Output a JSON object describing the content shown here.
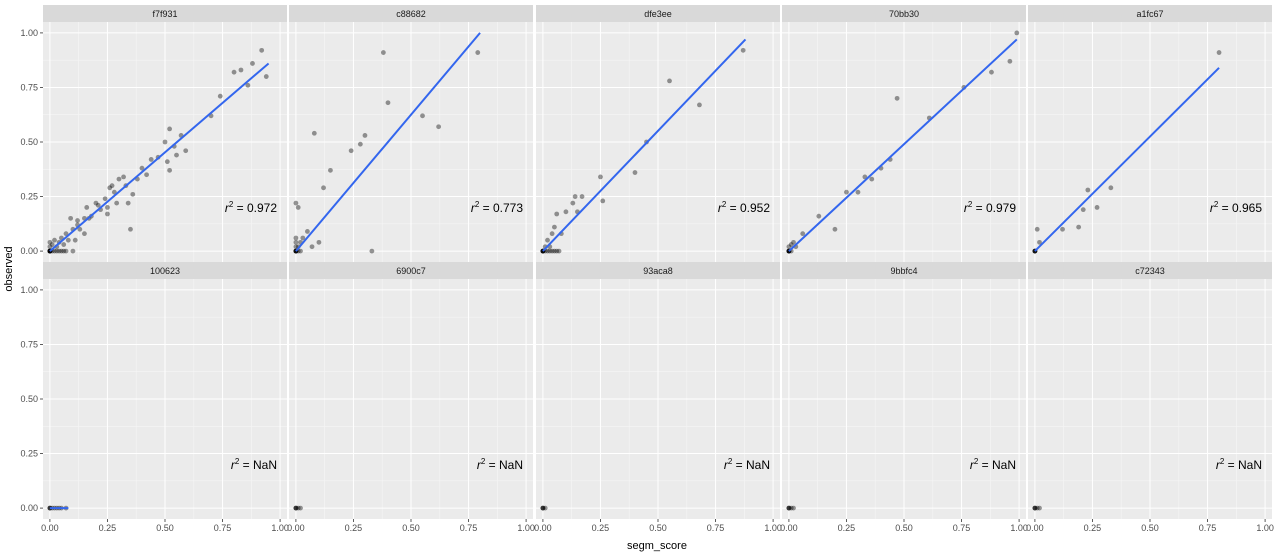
{
  "chart_data": {
    "type": "scatter",
    "layout": "facet-grid",
    "ncol": 5,
    "nrow": 2,
    "xlabel": "segm_score",
    "ylabel": "observed",
    "xlim": [
      -0.03,
      1.03
    ],
    "ylim": [
      -0.05,
      1.05
    ],
    "xticks": [
      0.0,
      0.25,
      0.5,
      0.75,
      1.0
    ],
    "yticks": [
      0.0,
      0.25,
      0.5,
      0.75,
      1.0
    ],
    "xtick_labels": [
      "0.00",
      "0.25",
      "0.50",
      "0.75",
      "1.00"
    ],
    "ytick_labels": [
      "0.00",
      "0.25",
      "0.50",
      "0.75",
      "1.00"
    ],
    "grid": true,
    "legend": "none",
    "point_color": "#000000",
    "point_alpha": 0.4,
    "line_color": "#3366ee",
    "panel_background": "#ebebeb",
    "strip_background": "#d9d9d9",
    "annotation_prefix": "r",
    "annotation_sup": "2",
    "panels": [
      {
        "id": "f7f931",
        "annotation": " = 0.972",
        "fit": {
          "x": [
            0.0,
            0.95
          ],
          "y": [
            0.0,
            0.86
          ]
        },
        "points": [
          [
            0,
            0
          ],
          [
            0,
            0
          ],
          [
            0,
            0
          ],
          [
            0,
            0
          ],
          [
            0,
            0
          ],
          [
            0,
            0
          ],
          [
            0,
            0
          ],
          [
            0,
            0
          ],
          [
            0,
            0.02
          ],
          [
            0,
            0.04
          ],
          [
            0.01,
            0.0
          ],
          [
            0.01,
            0.03
          ],
          [
            0.02,
            0.0
          ],
          [
            0.02,
            0.05
          ],
          [
            0.03,
            0.0
          ],
          [
            0.03,
            0.02
          ],
          [
            0.04,
            0.0
          ],
          [
            0.04,
            0.04
          ],
          [
            0.05,
            0.0
          ],
          [
            0.05,
            0.06
          ],
          [
            0.06,
            0.0
          ],
          [
            0.06,
            0.03
          ],
          [
            0.07,
            0.0
          ],
          [
            0.07,
            0.08
          ],
          [
            0.08,
            0.05
          ],
          [
            0.09,
            0.15
          ],
          [
            0.1,
            0.0
          ],
          [
            0.1,
            0.1
          ],
          [
            0.11,
            0.05
          ],
          [
            0.12,
            0.12
          ],
          [
            0.12,
            0.14
          ],
          [
            0.13,
            0.1
          ],
          [
            0.15,
            0.08
          ],
          [
            0.15,
            0.15
          ],
          [
            0.16,
            0.2
          ],
          [
            0.17,
            0.15
          ],
          [
            0.18,
            0.16
          ],
          [
            0.2,
            0.22
          ],
          [
            0.21,
            0.21
          ],
          [
            0.22,
            0.19
          ],
          [
            0.24,
            0.24
          ],
          [
            0.25,
            0.2
          ],
          [
            0.25,
            0.17
          ],
          [
            0.26,
            0.29
          ],
          [
            0.27,
            0.3
          ],
          [
            0.28,
            0.27
          ],
          [
            0.29,
            0.22
          ],
          [
            0.3,
            0.33
          ],
          [
            0.32,
            0.34
          ],
          [
            0.33,
            0.3
          ],
          [
            0.34,
            0.22
          ],
          [
            0.35,
            0.1
          ],
          [
            0.36,
            0.26
          ],
          [
            0.38,
            0.33
          ],
          [
            0.4,
            0.38
          ],
          [
            0.42,
            0.35
          ],
          [
            0.44,
            0.42
          ],
          [
            0.47,
            0.43
          ],
          [
            0.5,
            0.5
          ],
          [
            0.51,
            0.41
          ],
          [
            0.52,
            0.37
          ],
          [
            0.52,
            0.56
          ],
          [
            0.54,
            0.48
          ],
          [
            0.55,
            0.44
          ],
          [
            0.57,
            0.53
          ],
          [
            0.59,
            0.46
          ],
          [
            0.7,
            0.62
          ],
          [
            0.74,
            0.71
          ],
          [
            0.8,
            0.82
          ],
          [
            0.83,
            0.83
          ],
          [
            0.86,
            0.76
          ],
          [
            0.88,
            0.86
          ],
          [
            0.92,
            0.92
          ],
          [
            0.94,
            0.8
          ]
        ]
      },
      {
        "id": "c88682",
        "annotation": " = 0.773",
        "fit": {
          "x": [
            0.0,
            0.8
          ],
          "y": [
            0.0,
            1.0
          ]
        },
        "points": [
          [
            0,
            0
          ],
          [
            0,
            0
          ],
          [
            0,
            0
          ],
          [
            0,
            0
          ],
          [
            0,
            0
          ],
          [
            0,
            0
          ],
          [
            0,
            0.02
          ],
          [
            0,
            0.04
          ],
          [
            0,
            0.06
          ],
          [
            0.01,
            0.0
          ],
          [
            0.01,
            0.02
          ],
          [
            0.02,
            0.0
          ],
          [
            0.02,
            0.04
          ],
          [
            0.03,
            0.06
          ],
          [
            0.05,
            0.09
          ],
          [
            0.07,
            0.02
          ],
          [
            0.08,
            0.54
          ],
          [
            0.1,
            0.04
          ],
          [
            0.12,
            0.29
          ],
          [
            0.15,
            0.37
          ],
          [
            0.24,
            0.46
          ],
          [
            0.28,
            0.49
          ],
          [
            0.3,
            0.53
          ],
          [
            0.33,
            0.0
          ],
          [
            0.38,
            0.91
          ],
          [
            0.4,
            0.68
          ],
          [
            0.55,
            0.62
          ],
          [
            0.62,
            0.57
          ],
          [
            0.79,
            0.91
          ],
          [
            0.0,
            0.22
          ],
          [
            0.01,
            0.2
          ]
        ]
      },
      {
        "id": "dfe3ee",
        "annotation": " = 0.952",
        "fit": {
          "x": [
            0.0,
            0.88
          ],
          "y": [
            0.0,
            0.97
          ]
        },
        "points": [
          [
            0,
            0
          ],
          [
            0,
            0
          ],
          [
            0,
            0
          ],
          [
            0,
            0
          ],
          [
            0,
            0
          ],
          [
            0,
            0
          ],
          [
            0.01,
            0.0
          ],
          [
            0.01,
            0.02
          ],
          [
            0.02,
            0.0
          ],
          [
            0.02,
            0.05
          ],
          [
            0.03,
            0.0
          ],
          [
            0.03,
            0.02
          ],
          [
            0.04,
            0.0
          ],
          [
            0.04,
            0.08
          ],
          [
            0.05,
            0.0
          ],
          [
            0.05,
            0.11
          ],
          [
            0.06,
            0.0
          ],
          [
            0.06,
            0.17
          ],
          [
            0.07,
            0.0
          ],
          [
            0.08,
            0.08
          ],
          [
            0.1,
            0.18
          ],
          [
            0.13,
            0.22
          ],
          [
            0.14,
            0.25
          ],
          [
            0.15,
            0.18
          ],
          [
            0.17,
            0.25
          ],
          [
            0.25,
            0.34
          ],
          [
            0.26,
            0.23
          ],
          [
            0.4,
            0.36
          ],
          [
            0.45,
            0.5
          ],
          [
            0.55,
            0.78
          ],
          [
            0.68,
            0.67
          ],
          [
            0.87,
            0.92
          ]
        ]
      },
      {
        "id": "70bb30",
        "annotation": " = 0.979",
        "fit": {
          "x": [
            0.0,
            0.99
          ],
          "y": [
            0.0,
            0.97
          ]
        },
        "points": [
          [
            0,
            0
          ],
          [
            0,
            0
          ],
          [
            0,
            0
          ],
          [
            0,
            0
          ],
          [
            0,
            0
          ],
          [
            0,
            0
          ],
          [
            0,
            0.02
          ],
          [
            0.01,
            0.0
          ],
          [
            0.01,
            0.03
          ],
          [
            0.02,
            0.04
          ],
          [
            0.03,
            0.02
          ],
          [
            0.06,
            0.08
          ],
          [
            0.13,
            0.16
          ],
          [
            0.2,
            0.1
          ],
          [
            0.25,
            0.27
          ],
          [
            0.3,
            0.27
          ],
          [
            0.33,
            0.34
          ],
          [
            0.36,
            0.33
          ],
          [
            0.4,
            0.38
          ],
          [
            0.44,
            0.42
          ],
          [
            0.47,
            0.7
          ],
          [
            0.61,
            0.61
          ],
          [
            0.76,
            0.75
          ],
          [
            0.88,
            0.82
          ],
          [
            0.96,
            0.87
          ],
          [
            0.99,
            1.0
          ]
        ]
      },
      {
        "id": "a1fc67",
        "annotation": " = 0.965",
        "fit": {
          "x": [
            0.0,
            0.8
          ],
          "y": [
            0.0,
            0.84
          ]
        },
        "points": [
          [
            0,
            0
          ],
          [
            0,
            0
          ],
          [
            0,
            0
          ],
          [
            0,
            0
          ],
          [
            0,
            0
          ],
          [
            0.01,
            0.1
          ],
          [
            0.02,
            0.04
          ],
          [
            0.12,
            0.1
          ],
          [
            0.19,
            0.11
          ],
          [
            0.21,
            0.19
          ],
          [
            0.23,
            0.28
          ],
          [
            0.27,
            0.2
          ],
          [
            0.33,
            0.29
          ],
          [
            0.8,
            0.91
          ]
        ]
      },
      {
        "id": "100623",
        "annotation": " = NaN",
        "fit": {
          "x": [
            0.0,
            0.08
          ],
          "y": [
            0.0,
            0.0
          ]
        },
        "points": [
          [
            0,
            0
          ],
          [
            0,
            0
          ],
          [
            0,
            0
          ],
          [
            0.01,
            0
          ],
          [
            0.02,
            0
          ],
          [
            0.03,
            0
          ],
          [
            0.04,
            0
          ],
          [
            0.05,
            0
          ],
          [
            0.07,
            0
          ]
        ]
      },
      {
        "id": "6900c7",
        "annotation": " = NaN",
        "fit": null,
        "points": [
          [
            0,
            0
          ],
          [
            0,
            0
          ],
          [
            0,
            0
          ],
          [
            0.01,
            0
          ],
          [
            0.02,
            0
          ]
        ]
      },
      {
        "id": "93aca8",
        "annotation": " = NaN",
        "fit": null,
        "points": [
          [
            0,
            0
          ],
          [
            0,
            0
          ],
          [
            0,
            0
          ],
          [
            0.01,
            0
          ]
        ]
      },
      {
        "id": "9bbfc4",
        "annotation": " = NaN",
        "fit": null,
        "points": [
          [
            0,
            0
          ],
          [
            0,
            0
          ],
          [
            0,
            0
          ],
          [
            0.01,
            0
          ],
          [
            0.02,
            0
          ]
        ]
      },
      {
        "id": "c72343",
        "annotation": " = NaN",
        "fit": null,
        "points": [
          [
            0,
            0
          ],
          [
            0,
            0
          ],
          [
            0,
            0
          ],
          [
            0.01,
            0
          ],
          [
            0.02,
            0
          ]
        ]
      }
    ]
  }
}
